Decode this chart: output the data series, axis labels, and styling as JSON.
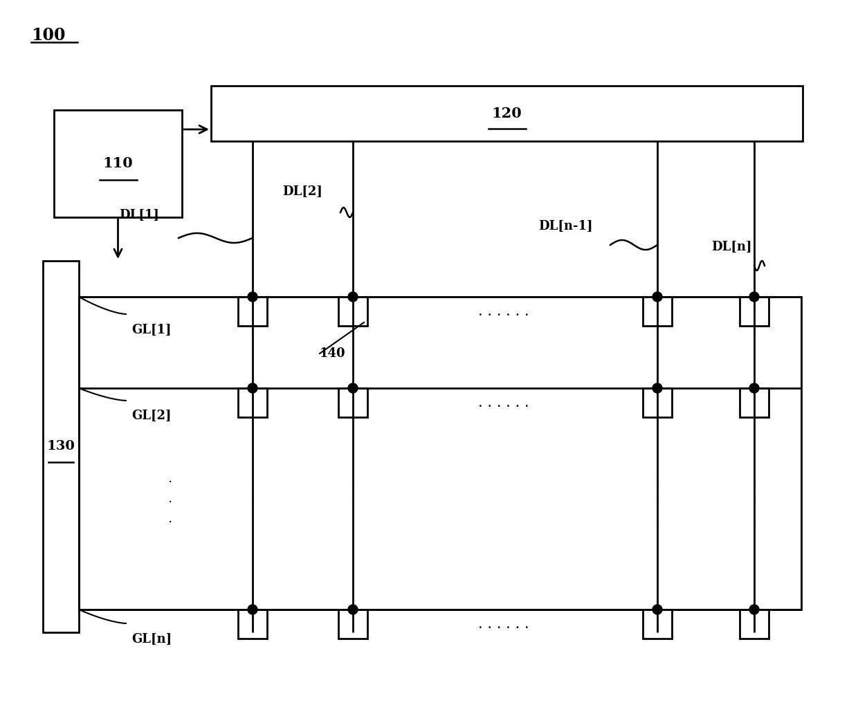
{
  "bg_color": "#ffffff",
  "line_color": "#000000",
  "label_100": "100",
  "label_110": "110",
  "label_120": "120",
  "label_130": "130",
  "label_140": "140",
  "label_dl1": "DL[1]",
  "label_dl2": "DL[2]",
  "label_dln1": "DL[n-1]",
  "label_dln": "DL[n]",
  "label_gl1": "GL[1]",
  "label_gl2": "GL[2]",
  "label_gln": "GL[n]",
  "figsize": [
    12.4,
    10.19
  ],
  "dpi": 100
}
